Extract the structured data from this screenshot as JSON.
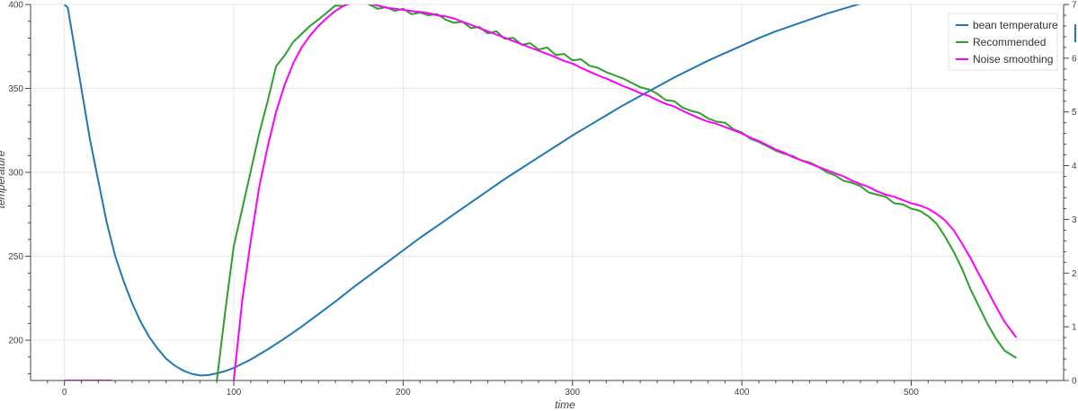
{
  "chart_data": {
    "type": "line",
    "xlabel": "time",
    "ylabel": "temperature",
    "xlim": [
      -20,
      590
    ],
    "ylim": [
      176,
      400
    ],
    "y2lim": [
      0,
      7
    ],
    "grid": true,
    "legend_position": "top-right",
    "x_ticks": [
      0,
      100,
      200,
      300,
      400,
      500
    ],
    "y_ticks": [
      200,
      250,
      300,
      350,
      400
    ],
    "y2_ticks": [
      0,
      1,
      2,
      3,
      4,
      5,
      6,
      7
    ],
    "series": [
      {
        "name": "bean temperature",
        "color": "#1f77b4",
        "axis": "left",
        "x": [
          0,
          2,
          5,
          10,
          15,
          20,
          25,
          30,
          35,
          40,
          45,
          50,
          55,
          60,
          65,
          70,
          75,
          80,
          85,
          90,
          95,
          100,
          110,
          120,
          130,
          140,
          150,
          160,
          170,
          180,
          190,
          200,
          210,
          220,
          230,
          240,
          250,
          260,
          270,
          280,
          290,
          300,
          310,
          320,
          330,
          340,
          350,
          360,
          370,
          380,
          390,
          400,
          410,
          420,
          430,
          440,
          450,
          460,
          470,
          480,
          490,
          500,
          510,
          520,
          530,
          540,
          550,
          562
        ],
        "y": [
          400,
          398,
          380,
          350,
          320,
          295,
          270,
          250,
          235,
          222,
          211,
          202,
          195,
          189,
          185,
          182,
          180,
          179,
          179.2,
          180.3,
          181.6,
          183.5,
          188.5,
          194.5,
          201,
          208,
          215.5,
          223,
          231,
          238.5,
          246,
          253.5,
          261,
          268,
          275,
          282,
          289,
          296,
          302.5,
          309,
          315.5,
          322,
          328,
          334,
          340,
          345.5,
          351,
          356.5,
          361.5,
          366.5,
          371,
          375.5,
          380,
          384,
          387.5,
          391,
          394.5,
          397.5,
          400.5,
          403,
          405.5,
          408,
          410.3,
          412.3,
          414,
          415.3,
          416.3,
          417
        ]
      },
      {
        "name": "Recommended",
        "color": "#2ca02c",
        "axis": "right",
        "x": [
          90,
          95,
          100,
          105,
          110,
          115,
          120,
          125,
          130,
          135,
          140,
          145,
          150,
          155,
          160,
          165,
          170,
          175,
          180,
          185,
          190,
          195,
          200,
          205,
          210,
          215,
          220,
          225,
          230,
          235,
          240,
          245,
          250,
          255,
          260,
          265,
          270,
          275,
          280,
          285,
          290,
          295,
          300,
          305,
          310,
          315,
          320,
          325,
          330,
          335,
          340,
          345,
          350,
          355,
          360,
          365,
          370,
          375,
          380,
          385,
          390,
          395,
          400,
          405,
          410,
          415,
          420,
          425,
          430,
          435,
          440,
          445,
          450,
          455,
          460,
          465,
          470,
          475,
          480,
          485,
          490,
          495,
          500,
          505,
          510,
          515,
          520,
          525,
          530,
          535,
          540,
          545,
          550,
          555,
          562
        ],
        "y": [
          0,
          1.3,
          2.5,
          3.2,
          3.9,
          4.6,
          5.2,
          5.85,
          6.05,
          6.3,
          6.45,
          6.6,
          6.72,
          6.85,
          6.98,
          6.97,
          7.08,
          7.08,
          7.0,
          6.92,
          6.95,
          6.88,
          6.92,
          6.82,
          6.85,
          6.8,
          6.82,
          6.72,
          6.66,
          6.68,
          6.56,
          6.58,
          6.46,
          6.5,
          6.36,
          6.38,
          6.25,
          6.28,
          6.16,
          6.2,
          6.06,
          6.08,
          5.96,
          5.98,
          5.86,
          5.82,
          5.74,
          5.68,
          5.62,
          5.54,
          5.46,
          5.42,
          5.34,
          5.22,
          5.2,
          5.08,
          5.02,
          4.98,
          4.88,
          4.82,
          4.8,
          4.68,
          4.62,
          4.5,
          4.44,
          4.36,
          4.28,
          4.22,
          4.18,
          4.1,
          4.06,
          3.98,
          3.88,
          3.82,
          3.72,
          3.68,
          3.62,
          3.5,
          3.46,
          3.42,
          3.3,
          3.28,
          3.2,
          3.16,
          3.06,
          2.92,
          2.68,
          2.4,
          2.08,
          1.7,
          1.38,
          1.06,
          0.78,
          0.56,
          0.42
        ]
      },
      {
        "name": "Noise smoothing",
        "color": "#ff00ff",
        "axis": "right",
        "x": [
          100,
          105,
          110,
          115,
          120,
          125,
          130,
          135,
          140,
          145,
          150,
          155,
          160,
          165,
          170,
          175,
          180,
          185,
          190,
          195,
          200,
          205,
          210,
          215,
          220,
          225,
          230,
          235,
          240,
          245,
          250,
          255,
          260,
          265,
          270,
          275,
          280,
          285,
          290,
          295,
          300,
          305,
          310,
          315,
          320,
          325,
          330,
          335,
          340,
          345,
          350,
          355,
          360,
          365,
          370,
          375,
          380,
          385,
          390,
          395,
          400,
          405,
          410,
          415,
          420,
          425,
          430,
          435,
          440,
          445,
          450,
          455,
          460,
          465,
          470,
          475,
          480,
          485,
          490,
          495,
          500,
          505,
          510,
          515,
          520,
          525,
          530,
          535,
          540,
          545,
          550,
          555,
          562
        ],
        "y": [
          0,
          1.5,
          2.6,
          3.6,
          4.35,
          5.0,
          5.5,
          5.9,
          6.2,
          6.42,
          6.6,
          6.75,
          6.88,
          6.98,
          7.03,
          7.05,
          7.02,
          6.98,
          6.94,
          6.92,
          6.9,
          6.88,
          6.86,
          6.84,
          6.8,
          6.78,
          6.74,
          6.68,
          6.62,
          6.56,
          6.5,
          6.44,
          6.38,
          6.32,
          6.26,
          6.2,
          6.14,
          6.08,
          6.02,
          5.95,
          5.9,
          5.82,
          5.75,
          5.68,
          5.62,
          5.55,
          5.48,
          5.42,
          5.35,
          5.3,
          5.22,
          5.15,
          5.1,
          5.02,
          4.95,
          4.88,
          4.82,
          4.78,
          4.72,
          4.66,
          4.6,
          4.52,
          4.46,
          4.38,
          4.3,
          4.24,
          4.16,
          4.1,
          4.04,
          3.98,
          3.92,
          3.86,
          3.8,
          3.72,
          3.66,
          3.6,
          3.52,
          3.46,
          3.42,
          3.36,
          3.3,
          3.26,
          3.2,
          3.1,
          2.98,
          2.8,
          2.55,
          2.28,
          1.98,
          1.68,
          1.38,
          1.1,
          0.8
        ]
      },
      {
        "color": "#ff00ff",
        "axis": "right",
        "x": [
          0,
          28
        ],
        "y": [
          0,
          0
        ]
      }
    ]
  }
}
